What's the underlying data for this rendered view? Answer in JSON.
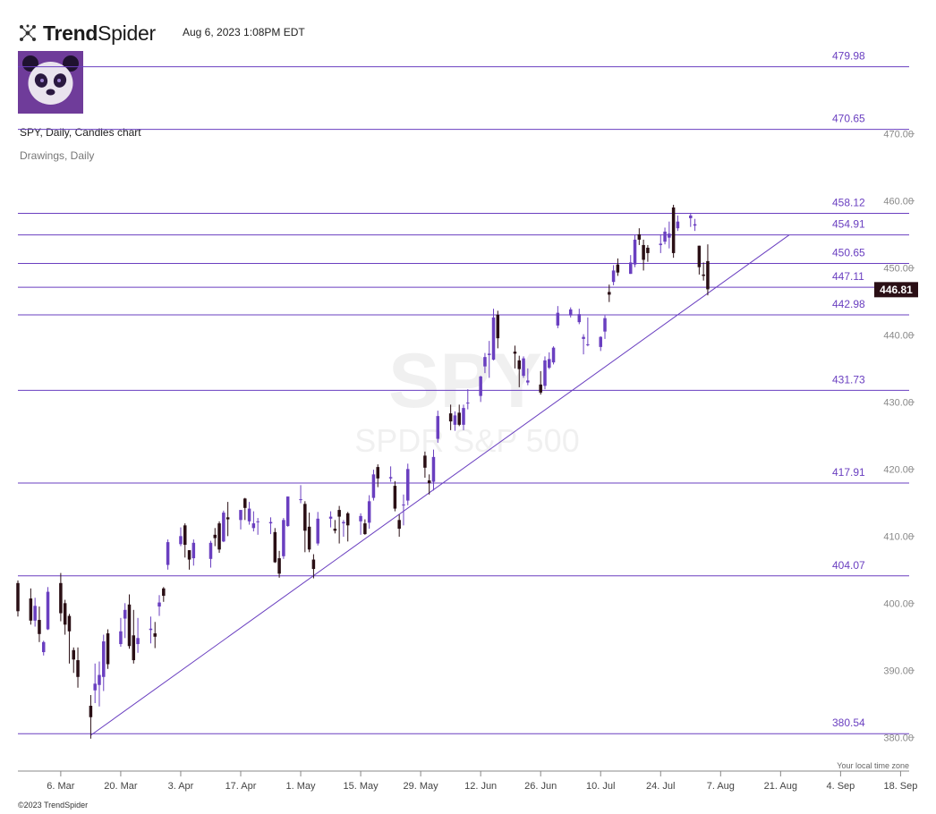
{
  "header": {
    "brand_bold": "Trend",
    "brand_light": "Spider",
    "timestamp": "Aug 6, 2023 1:08PM EDT"
  },
  "chart_title": "SPY, Daily, Candles chart",
  "chart_subtitle": "Drawings, Daily",
  "watermark": {
    "symbol": "SPY",
    "name": "SPDR S&P 500"
  },
  "timezone_label": "Your local time zone",
  "footer": "©2023 TrendSpider",
  "colors": {
    "up": "#6a3fc0",
    "down": "#2a0f15",
    "levels": "#6a3fc0",
    "last_price_bg": "#2a0f15"
  },
  "chart_data": {
    "type": "candlestick",
    "title": "SPY, Daily, Candles chart",
    "ylim": [
      375.5,
      484.6
    ],
    "y_ticks": [
      "380.00",
      "390.00",
      "400.00",
      "410.00",
      "420.00",
      "430.00",
      "440.00",
      "450.00",
      "460.00",
      "470.00"
    ],
    "x_ticks": [
      "6. Mar",
      "20. Mar",
      "3. Apr",
      "17. Apr",
      "1. May",
      "15. May",
      "29. May",
      "12. Jun",
      "26. Jun",
      "10. Jul",
      "24. Jul",
      "7. Aug",
      "21. Aug",
      "4. Sep",
      "18. Sep"
    ],
    "x_start": "2023-02-24",
    "x_end": "2023-09-20",
    "horizontal_levels": [
      {
        "label": "479.98",
        "value": 479.98
      },
      {
        "label": "470.65",
        "value": 470.65
      },
      {
        "label": "458.12",
        "value": 458.12
      },
      {
        "label": "454.91",
        "value": 454.91
      },
      {
        "label": "450.65",
        "value": 450.65
      },
      {
        "label": "447.11",
        "value": 447.11
      },
      {
        "label": "442.98",
        "value": 442.98
      },
      {
        "label": "431.73",
        "value": 431.73
      },
      {
        "label": "417.91",
        "value": 417.91
      },
      {
        "label": "404.07",
        "value": 404.07
      },
      {
        "label": "380.54",
        "value": 380.54
      }
    ],
    "trendline": {
      "from": {
        "date": "2023-03-13",
        "price": 380.3
      },
      "to": {
        "date": "2023-08-23",
        "price": 454.9
      }
    },
    "last_price": {
      "label": "446.81",
      "value": 446.81
    },
    "candles": [
      [
        "2023-02-24",
        403.0,
        403.4,
        398.0,
        398.8
      ],
      [
        "2023-02-27",
        400.7,
        402.2,
        396.8,
        397.4
      ],
      [
        "2023-02-28",
        397.4,
        400.8,
        396.5,
        399.6
      ],
      [
        "2023-03-01",
        397.5,
        399.5,
        394.2,
        395.4
      ],
      [
        "2023-03-02",
        392.7,
        394.4,
        392.2,
        394.2
      ],
      [
        "2023-03-03",
        396.1,
        402.4,
        396.0,
        401.7
      ],
      [
        "2023-03-06",
        403.0,
        404.5,
        397.3,
        398.5
      ],
      [
        "2023-03-07",
        400.0,
        400.5,
        395.3,
        396.8
      ],
      [
        "2023-03-08",
        398.1,
        398.4,
        391.0,
        395.8
      ],
      [
        "2023-03-09",
        393.0,
        393.4,
        389.6,
        391.6
      ],
      [
        "2023-03-10",
        391.5,
        393.4,
        387.4,
        389.0
      ],
      [
        "2023-03-13",
        384.7,
        386.3,
        379.8,
        383.0
      ],
      [
        "2023-03-14",
        387.0,
        391.0,
        385.1,
        388.0
      ],
      [
        "2023-03-15",
        387.8,
        391.3,
        384.6,
        389.3
      ],
      [
        "2023-03-16",
        389.0,
        395.3,
        386.9,
        394.3
      ],
      [
        "2023-03-17",
        395.5,
        396.1,
        390.2,
        390.9
      ],
      [
        "2023-03-20",
        393.9,
        397.8,
        393.5,
        395.8
      ],
      [
        "2023-03-21",
        397.7,
        400.0,
        394.8,
        399.0
      ],
      [
        "2023-03-22",
        399.8,
        401.3,
        393.2,
        393.6
      ],
      [
        "2023-03-23",
        395.2,
        399.0,
        391.0,
        391.5
      ],
      [
        "2023-03-24",
        393.9,
        397.8,
        392.6,
        394.8
      ],
      [
        "2023-03-27",
        396.0,
        398.0,
        394.0,
        396.2
      ],
      [
        "2023-03-28",
        395.5,
        397.2,
        393.3,
        395.0
      ],
      [
        "2023-03-29",
        399.5,
        401.2,
        398.1,
        400.1
      ],
      [
        "2023-03-30",
        402.2,
        402.4,
        400.2,
        401.1
      ],
      [
        "2023-03-31",
        405.7,
        409.5,
        405.0,
        409.1
      ],
      [
        "2023-04-03",
        408.8,
        411.3,
        408.5,
        410.0
      ],
      [
        "2023-04-04",
        411.6,
        411.9,
        406.8,
        408.7
      ],
      [
        "2023-04-05",
        407.9,
        407.9,
        405.0,
        406.5
      ],
      [
        "2023-04-06",
        406.7,
        409.5,
        405.6,
        409.0
      ],
      [
        "2023-04-10",
        406.6,
        409.3,
        405.3,
        409.0
      ],
      [
        "2023-04-11",
        410.2,
        411.2,
        408.5,
        409.7
      ],
      [
        "2023-04-12",
        411.9,
        412.2,
        407.5,
        408.0
      ],
      [
        "2023-04-13",
        409.2,
        413.8,
        409.1,
        413.5
      ],
      [
        "2023-04-14",
        412.8,
        415.1,
        410.0,
        412.5
      ],
      [
        "2023-04-17",
        412.4,
        413.9,
        411.0,
        413.9
      ],
      [
        "2023-04-18",
        415.6,
        415.7,
        412.4,
        414.2
      ],
      [
        "2023-04-19",
        412.2,
        415.1,
        411.7,
        414.1
      ],
      [
        "2023-04-20",
        411.2,
        413.7,
        410.7,
        411.9
      ],
      [
        "2023-04-21",
        412.2,
        412.7,
        410.2,
        412.2
      ],
      [
        "2023-04-24",
        411.9,
        412.8,
        410.3,
        412.1
      ],
      [
        "2023-04-25",
        410.6,
        411.2,
        406.0,
        406.1
      ],
      [
        "2023-04-26",
        406.7,
        407.8,
        403.8,
        404.4
      ],
      [
        "2023-04-27",
        407.0,
        412.7,
        406.6,
        412.4
      ],
      [
        "2023-04-28",
        411.5,
        415.9,
        411.4,
        415.9
      ],
      [
        "2023-05-01",
        415.5,
        417.6,
        414.9,
        415.5
      ],
      [
        "2023-05-02",
        414.8,
        415.2,
        407.6,
        410.8
      ],
      [
        "2023-05-03",
        411.4,
        413.5,
        407.6,
        408.0
      ],
      [
        "2023-05-04",
        406.5,
        407.3,
        403.7,
        405.1
      ],
      [
        "2023-05-05",
        408.9,
        413.6,
        408.6,
        412.6
      ],
      [
        "2023-05-08",
        412.6,
        413.7,
        411.3,
        412.9
      ],
      [
        "2023-05-09",
        411.1,
        412.4,
        410.4,
        410.8
      ],
      [
        "2023-05-10",
        413.9,
        414.5,
        408.9,
        412.9
      ],
      [
        "2023-05-11",
        411.9,
        412.4,
        409.9,
        412.1
      ],
      [
        "2023-05-12",
        413.4,
        413.6,
        409.2,
        411.6
      ],
      [
        "2023-05-15",
        412.2,
        413.4,
        410.2,
        413.0
      ],
      [
        "2023-05-16",
        411.9,
        412.5,
        410.2,
        410.3
      ],
      [
        "2023-05-17",
        412.0,
        416.1,
        411.1,
        415.2
      ],
      [
        "2023-05-18",
        415.7,
        419.9,
        415.3,
        419.2
      ],
      [
        "2023-05-19",
        420.3,
        420.7,
        417.3,
        418.6
      ],
      [
        "2023-05-22",
        418.6,
        420.4,
        418.1,
        418.8
      ],
      [
        "2023-05-23",
        417.5,
        418.2,
        413.7,
        414.1
      ],
      [
        "2023-05-24",
        412.4,
        413.2,
        409.9,
        411.1
      ],
      [
        "2023-05-25",
        414.7,
        416.2,
        411.6,
        414.7
      ],
      [
        "2023-05-26",
        415.3,
        420.8,
        414.6,
        420.0
      ],
      [
        "2023-05-30",
        422.0,
        422.6,
        418.7,
        420.2
      ],
      [
        "2023-05-31",
        418.3,
        419.2,
        416.2,
        417.9
      ],
      [
        "2023-06-01",
        418.1,
        422.9,
        416.8,
        421.8
      ],
      [
        "2023-06-02",
        424.5,
        428.7,
        423.9,
        427.9
      ],
      [
        "2023-06-05",
        428.3,
        429.6,
        425.8,
        427.1
      ],
      [
        "2023-06-06",
        426.6,
        428.6,
        425.7,
        428.0
      ],
      [
        "2023-06-07",
        428.4,
        429.6,
        426.4,
        426.6
      ],
      [
        "2023-06-08",
        426.6,
        429.6,
        425.8,
        429.1
      ],
      [
        "2023-06-09",
        429.9,
        431.9,
        428.9,
        429.9
      ],
      [
        "2023-06-12",
        430.9,
        433.9,
        430.0,
        433.8
      ],
      [
        "2023-06-13",
        435.3,
        437.3,
        434.3,
        436.7
      ],
      [
        "2023-06-14",
        437.0,
        439.1,
        433.6,
        437.2
      ],
      [
        "2023-06-15",
        436.3,
        443.9,
        436.2,
        442.6
      ],
      [
        "2023-06-16",
        443.0,
        443.6,
        438.0,
        439.5
      ],
      [
        "2023-06-20",
        437.5,
        438.4,
        435.0,
        437.2
      ],
      [
        "2023-06-21",
        436.2,
        436.9,
        432.2,
        434.9
      ],
      [
        "2023-06-22",
        433.9,
        436.8,
        433.6,
        436.5
      ],
      [
        "2023-06-23",
        432.9,
        435.0,
        432.5,
        433.2
      ],
      [
        "2023-06-26",
        432.6,
        434.6,
        431.1,
        431.4
      ],
      [
        "2023-06-27",
        432.4,
        436.8,
        431.9,
        436.2
      ],
      [
        "2023-06-28",
        435.1,
        437.4,
        434.9,
        436.4
      ],
      [
        "2023-06-29",
        435.9,
        438.3,
        435.6,
        438.1
      ],
      [
        "2023-06-30",
        441.4,
        444.3,
        441.0,
        443.3
      ],
      [
        "2023-07-03",
        442.9,
        444.1,
        442.6,
        443.8
      ],
      [
        "2023-07-05",
        441.9,
        443.9,
        441.6,
        443.1
      ],
      [
        "2023-07-06",
        439.4,
        440.1,
        437.1,
        439.7
      ],
      [
        "2023-07-07",
        438.6,
        442.6,
        438.3,
        438.6
      ],
      [
        "2023-07-10",
        438.2,
        439.8,
        437.6,
        439.7
      ],
      [
        "2023-07-11",
        440.5,
        442.9,
        439.4,
        442.5
      ],
      [
        "2023-07-12",
        446.4,
        447.5,
        444.9,
        446.0
      ],
      [
        "2023-07-13",
        447.9,
        450.4,
        447.4,
        449.6
      ],
      [
        "2023-07-14",
        450.5,
        451.4,
        448.8,
        449.3
      ],
      [
        "2023-07-17",
        449.1,
        451.9,
        449.1,
        450.8
      ],
      [
        "2023-07-18",
        450.5,
        454.9,
        450.1,
        454.2
      ],
      [
        "2023-07-19",
        455.0,
        455.9,
        453.4,
        454.2
      ],
      [
        "2023-07-20",
        453.4,
        454.2,
        449.6,
        451.2
      ],
      [
        "2023-07-21",
        453.0,
        453.4,
        450.9,
        452.2
      ],
      [
        "2023-07-24",
        453.4,
        455.0,
        452.2,
        453.6
      ],
      [
        "2023-07-25",
        453.9,
        456.0,
        453.5,
        455.4
      ],
      [
        "2023-07-26",
        454.5,
        456.9,
        452.9,
        455.1
      ],
      [
        "2023-07-27",
        459.0,
        459.4,
        451.5,
        452.2
      ],
      [
        "2023-07-28",
        455.9,
        457.8,
        455.5,
        456.9
      ],
      [
        "2023-07-31",
        457.4,
        458.2,
        456.1,
        457.8
      ],
      [
        "2023-08-01",
        456.3,
        457.3,
        455.5,
        456.5
      ],
      [
        "2023-08-02",
        453.3,
        453.3,
        449.0,
        450.1
      ],
      [
        "2023-08-03",
        449.0,
        450.8,
        448.1,
        448.8
      ],
      [
        "2023-08-04",
        451.0,
        453.5,
        445.9,
        446.8
      ]
    ]
  }
}
